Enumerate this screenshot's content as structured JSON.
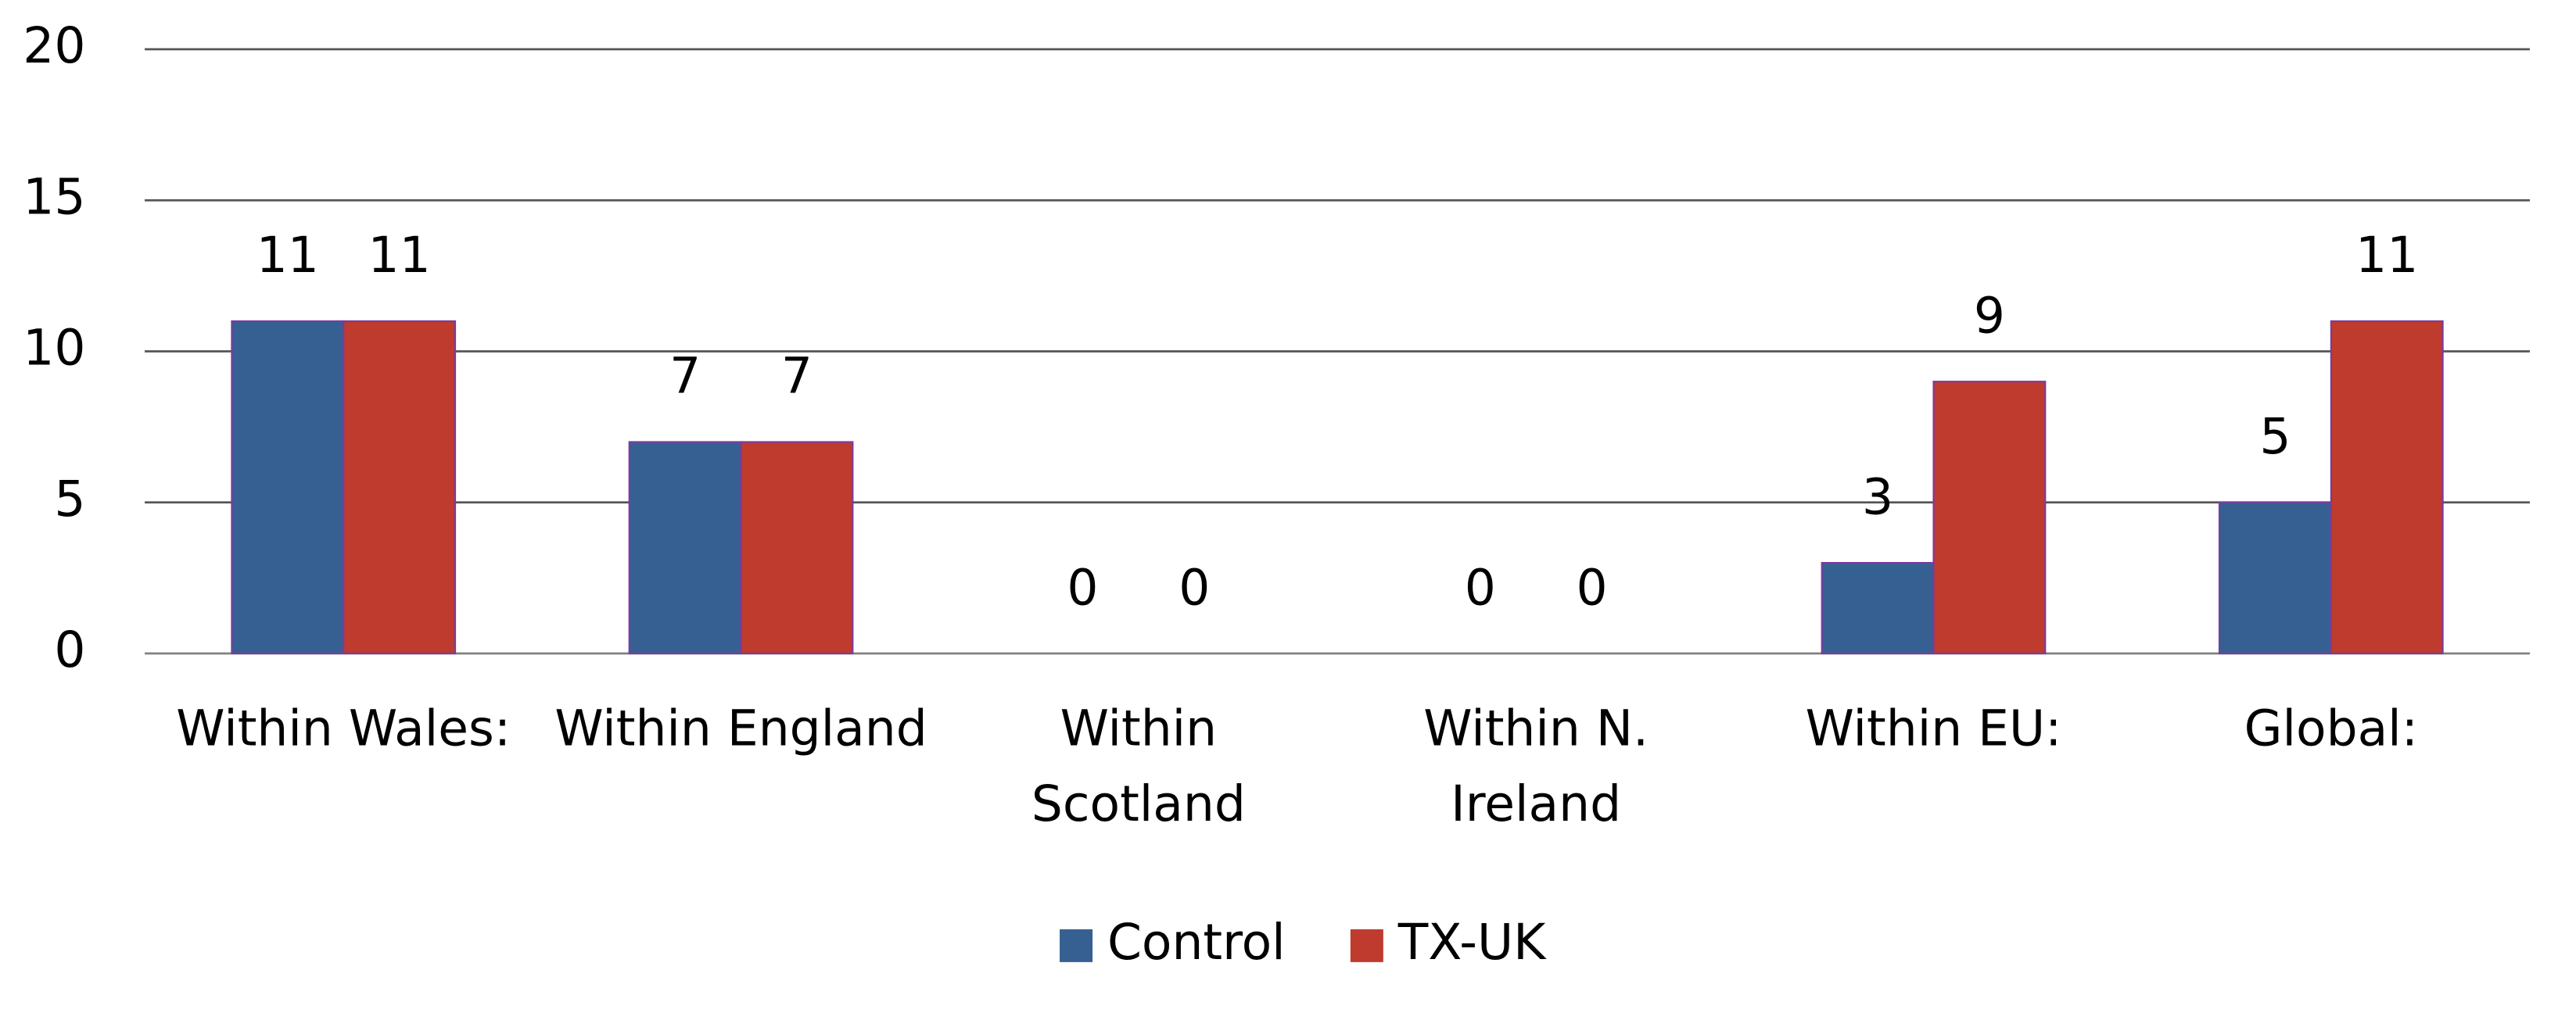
{
  "chart_data": {
    "type": "bar",
    "categories": [
      "Within Wales:",
      "Within England",
      "Within\nScotland",
      "Within N.\nIreland",
      "Within EU:",
      "Global:"
    ],
    "series": [
      {
        "name": "Control",
        "color": "#376092",
        "values": [
          11,
          7,
          0,
          0,
          3,
          5
        ]
      },
      {
        "name": "TX-UK",
        "color": "#be3b2e",
        "values": [
          11,
          7,
          0,
          0,
          9,
          11
        ]
      }
    ],
    "ylim": [
      0,
      20
    ],
    "yticks": [
      0,
      5,
      10,
      15,
      20
    ],
    "grid": true,
    "legend": "bottom"
  }
}
